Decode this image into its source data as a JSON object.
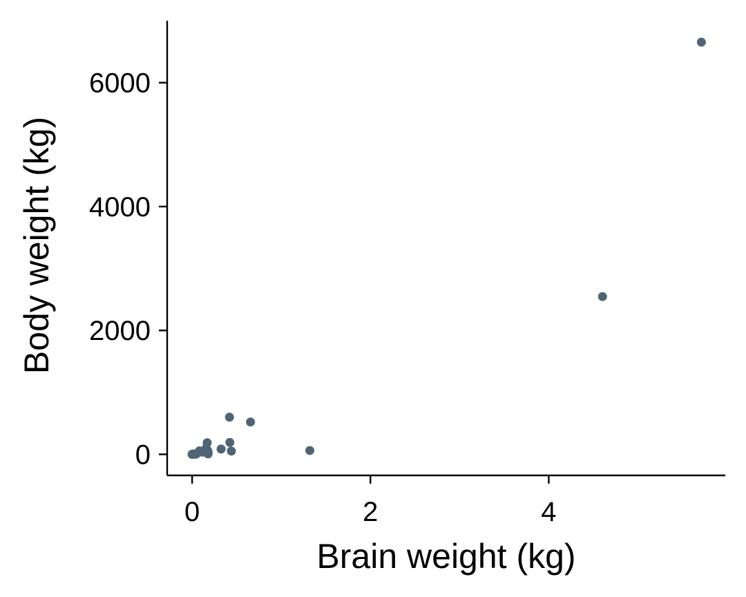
{
  "chart_data": {
    "type": "scatter",
    "title": "",
    "xlabel": "Brain weight (kg)",
    "ylabel": "Body weight (kg)",
    "xlim": [
      -0.28,
      5.98
    ],
    "ylim": [
      -340,
      7000
    ],
    "xticks": [
      0,
      2,
      4
    ],
    "yticks": [
      0,
      2000,
      4000,
      6000
    ],
    "grid": false,
    "legend": "none",
    "point_color": "#4f6575",
    "series": [
      {
        "x": [
          0.005,
          0.006,
          0.0066,
          0.0121,
          0.0012,
          0.0063,
          0.0003,
          0.0025,
          0.0047,
          0.0019,
          0.0175,
          0.004,
          0.001,
          0.01,
          0.0082,
          0.025,
          0.044,
          0.0057,
          0.0016,
          0.012,
          0.0064,
          0.05,
          0.0079,
          0.0034,
          0.081,
          0.115,
          0.169,
          0.179,
          0.157,
          0.175,
          0.18,
          0.17,
          0.44,
          0.6546,
          0.423,
          0.419,
          0.325,
          4.603,
          5.712,
          1.32
        ],
        "y": [
          1.35,
          3.3,
          1.0,
          3.5,
          0.48,
          1.04,
          0.02,
          0.3,
          0.12,
          0.1,
          3.385,
          0.2,
          0.023,
          0.75,
          0.785,
          1.4,
          3.6,
          0.92,
          0.01,
          2.5,
          0.55,
          10.0,
          2.0,
          0.28,
          55.5,
          35.0,
          187.1,
          6.8,
          100.0,
          60.0,
          27.66,
          36.33,
          52.16,
          521.0,
          192.0,
          600.0,
          85.0,
          2547.0,
          6654.0,
          62.0
        ]
      }
    ]
  }
}
